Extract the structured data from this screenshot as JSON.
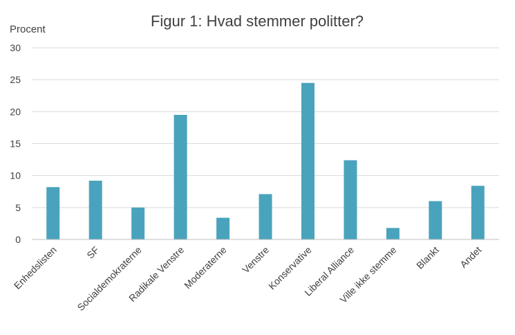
{
  "chart_data": {
    "type": "bar",
    "title": "Figur 1: Hvad stemmer politter?",
    "ylabel": "Procent",
    "xlabel": "",
    "ylim": [
      0,
      30
    ],
    "yticks": [
      0,
      5,
      10,
      15,
      20,
      25,
      30
    ],
    "grid": true,
    "categories": [
      "Enhedslisten",
      "SF",
      "Socialdemokraterne",
      "Radikale Venstre",
      "Moderaterne",
      "Venstre",
      "Konservative",
      "Liberal Alliance",
      "Ville ikke stemme",
      "Blankt",
      "Andet"
    ],
    "values": [
      8.2,
      9.2,
      5.0,
      19.5,
      3.4,
      7.1,
      24.5,
      12.4,
      1.8,
      6.0,
      8.4
    ],
    "bar_color": "#4aa3bd"
  }
}
